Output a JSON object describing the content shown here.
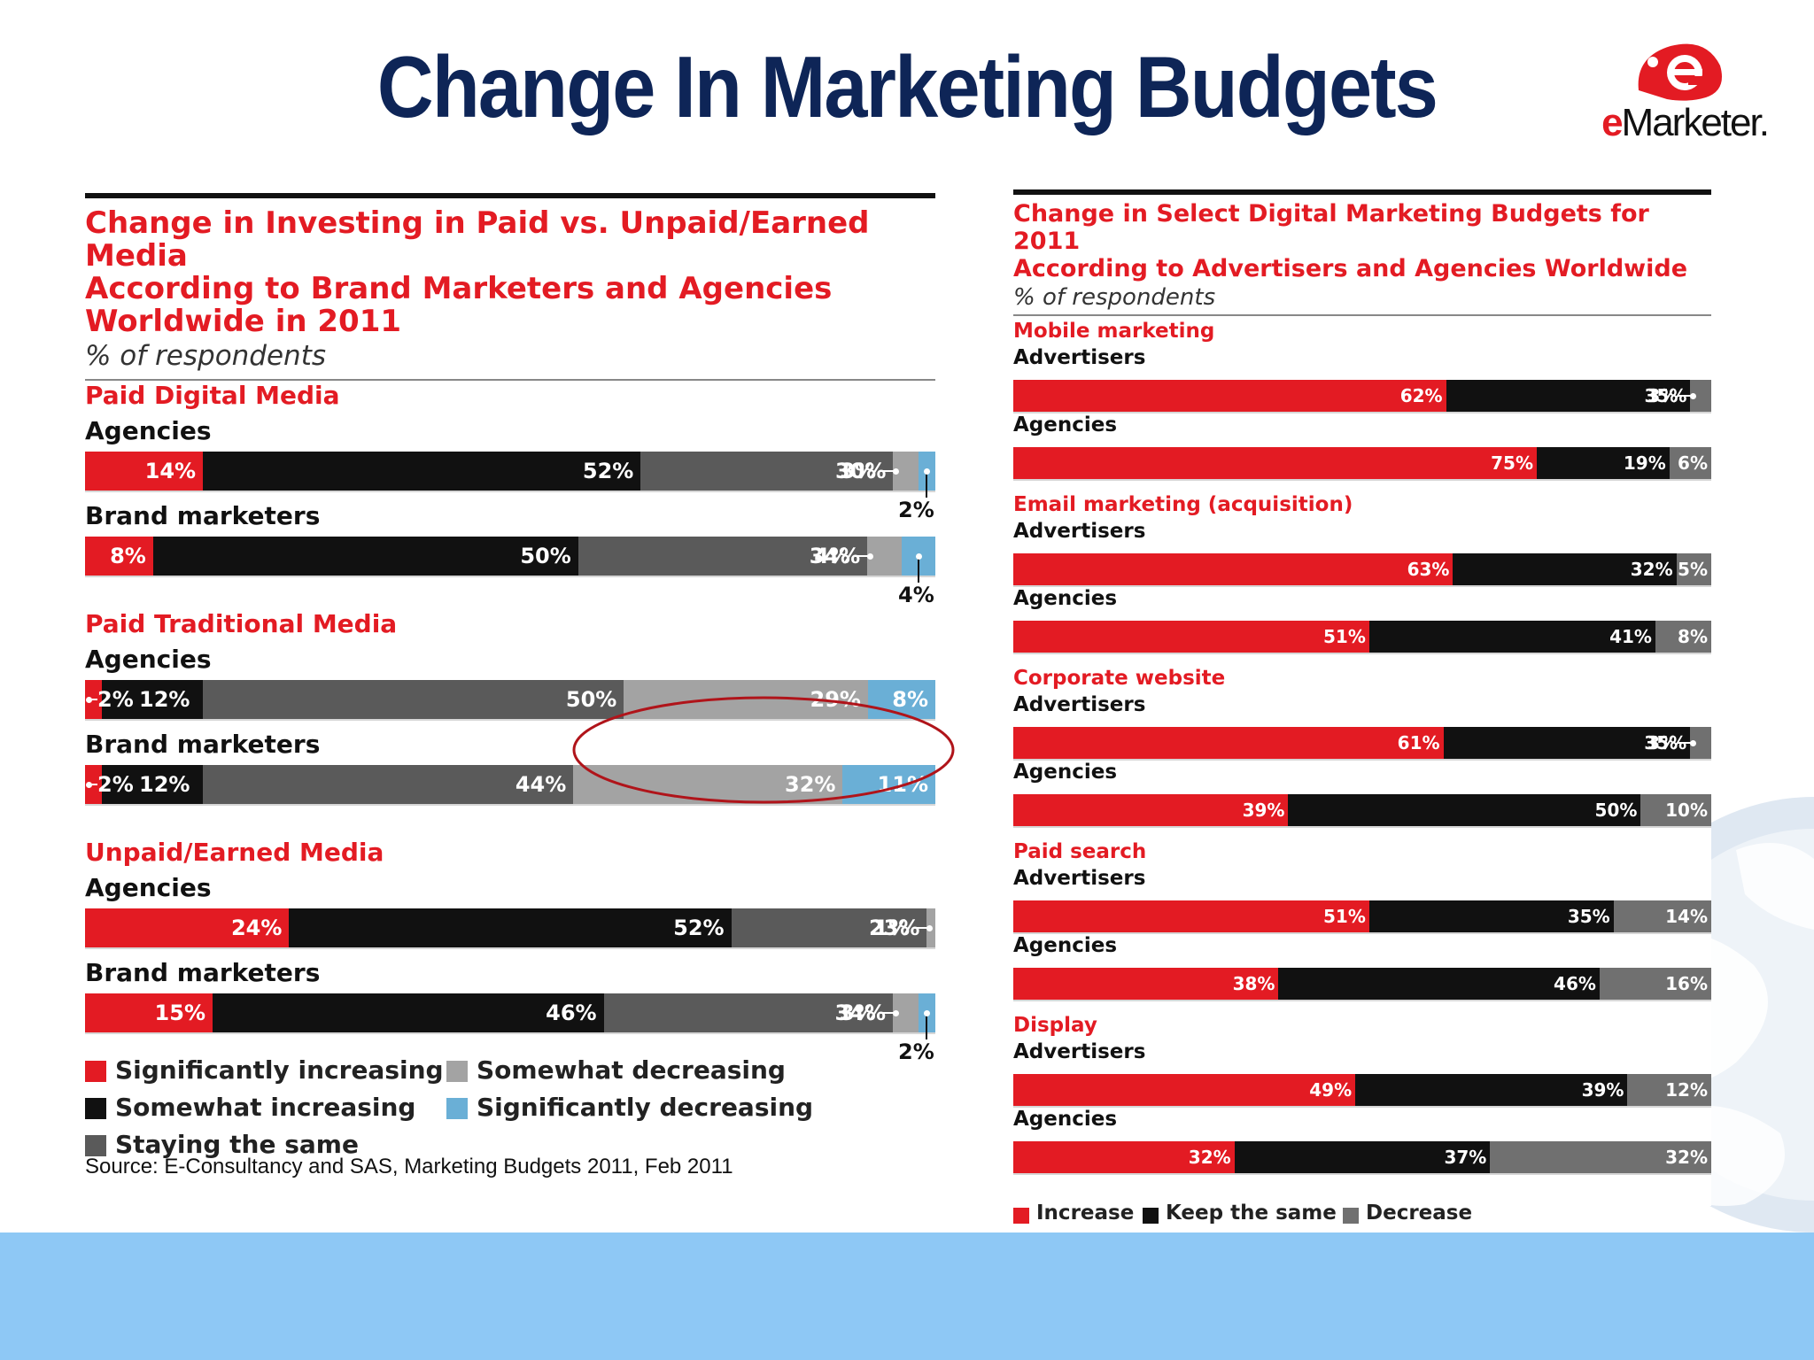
{
  "slide_title": "Change In Marketing Budgets",
  "logo_text": "eMarketer",
  "source_note": "Source: E-Consultancy and SAS, Marketing Budgets 2011, Feb 2011",
  "colors": {
    "title": "#0e2557",
    "increase": "#e31b23",
    "sig_increase": "#e31b23",
    "somewhat_increase": "#111111",
    "same": "#5a5a5a",
    "somewhat_decrease": "#a3a3a3",
    "sig_decrease": "#6aafd6",
    "keep_same": "#111111",
    "decrease": "#707070",
    "footer": "#8ec8f5"
  },
  "left_chart": {
    "title": "Change in Investing in Paid vs. Unpaid/Earned Media\nAccording to Brand Marketers and Agencies\nWorldwide in 2011",
    "subtitle": "% of respondents",
    "legend": [
      {
        "label": "Significantly increasing",
        "color": "#e31b23"
      },
      {
        "label": "Somewhat increasing",
        "color": "#111111"
      },
      {
        "label": "Staying the same",
        "color": "#5a5a5a"
      },
      {
        "label": "Somewhat decreasing",
        "color": "#a3a3a3"
      },
      {
        "label": "Significantly decreasing",
        "color": "#6aafd6"
      }
    ]
  },
  "right_chart": {
    "title": "Change in Select Digital Marketing Budgets for 2011\nAccording to Advertisers and Agencies Worldwide",
    "subtitle": "% of respondents",
    "legend": [
      {
        "label": "Increase",
        "color": "#e31b23"
      },
      {
        "label": "Keep the same",
        "color": "#111111"
      },
      {
        "label": "Decrease",
        "color": "#707070"
      }
    ]
  },
  "chart_data": [
    {
      "type": "bar",
      "orientation": "horizontal-stacked-100",
      "title": "Change in Investing in Paid vs. Unpaid/Earned Media According to Brand Marketers and Agencies Worldwide in 2011",
      "subtitle": "% of respondents",
      "series_names": [
        "Significantly increasing",
        "Somewhat increasing",
        "Staying the same",
        "Somewhat decreasing",
        "Significantly decreasing"
      ],
      "groups": [
        {
          "name": "Paid Digital Media",
          "rows": [
            {
              "label": "Agencies",
              "values": [
                14,
                52,
                30,
                3,
                2
              ],
              "labels": [
                "14%",
                "52%",
                "30%",
                "3%",
                "2%"
              ]
            },
            {
              "label": "Brand marketers",
              "values": [
                8,
                50,
                34,
                4,
                4
              ],
              "labels": [
                "8%",
                "50%",
                "34%",
                "4%",
                "4%"
              ]
            }
          ]
        },
        {
          "name": "Paid Traditional Media",
          "rows": [
            {
              "label": "Agencies",
              "values": [
                2,
                12,
                50,
                29,
                8
              ],
              "labels": [
                "2%",
                "12%",
                "50%",
                "29%",
                "8%"
              ]
            },
            {
              "label": "Brand marketers",
              "values": [
                2,
                12,
                44,
                32,
                11
              ],
              "labels": [
                "2%",
                "12%",
                "44%",
                "32%",
                "11%"
              ]
            }
          ]
        },
        {
          "name": "Unpaid/Earned Media",
          "rows": [
            {
              "label": "Agencies",
              "values": [
                24,
                52,
                23,
                1,
                0
              ],
              "labels": [
                "24%",
                "52%",
                "23%",
                "1%",
                ""
              ]
            },
            {
              "label": "Brand marketers",
              "values": [
                15,
                46,
                34,
                3,
                2
              ],
              "labels": [
                "15%",
                "46%",
                "34%",
                "3%",
                "2%"
              ]
            }
          ]
        }
      ]
    },
    {
      "type": "bar",
      "orientation": "horizontal-stacked-100",
      "title": "Change in Select Digital Marketing Budgets for 2011 According to Advertisers and Agencies Worldwide",
      "subtitle": "% of respondents",
      "series_names": [
        "Increase",
        "Keep the same",
        "Decrease"
      ],
      "groups": [
        {
          "name": "Mobile marketing",
          "rows": [
            {
              "label": "Advertisers",
              "values": [
                62,
                35,
                3
              ],
              "labels": [
                "62%",
                "35%",
                "3%"
              ]
            },
            {
              "label": "Agencies",
              "values": [
                75,
                19,
                6
              ],
              "labels": [
                "75%",
                "19%",
                "6%"
              ]
            }
          ]
        },
        {
          "name": "Email marketing (acquisition)",
          "rows": [
            {
              "label": "Advertisers",
              "values": [
                63,
                32,
                5
              ],
              "labels": [
                "63%",
                "32%",
                "5%"
              ]
            },
            {
              "label": "Agencies",
              "values": [
                51,
                41,
                8
              ],
              "labels": [
                "51%",
                "41%",
                "8%"
              ]
            }
          ]
        },
        {
          "name": "Corporate website",
          "rows": [
            {
              "label": "Advertisers",
              "values": [
                61,
                35,
                3
              ],
              "labels": [
                "61%",
                "35%",
                "3%"
              ]
            },
            {
              "label": "Agencies",
              "values": [
                39,
                50,
                10
              ],
              "labels": [
                "39%",
                "50%",
                "10%"
              ]
            }
          ]
        },
        {
          "name": "Paid search",
          "rows": [
            {
              "label": "Advertisers",
              "values": [
                51,
                35,
                14
              ],
              "labels": [
                "51%",
                "35%",
                "14%"
              ]
            },
            {
              "label": "Agencies",
              "values": [
                38,
                46,
                16
              ],
              "labels": [
                "38%",
                "46%",
                "16%"
              ]
            }
          ]
        },
        {
          "name": "Display",
          "rows": [
            {
              "label": "Advertisers",
              "values": [
                49,
                39,
                12
              ],
              "labels": [
                "49%",
                "39%",
                "12%"
              ]
            },
            {
              "label": "Agencies",
              "values": [
                32,
                37,
                32
              ],
              "labels": [
                "32%",
                "37%",
                "32%"
              ]
            }
          ]
        }
      ]
    }
  ]
}
